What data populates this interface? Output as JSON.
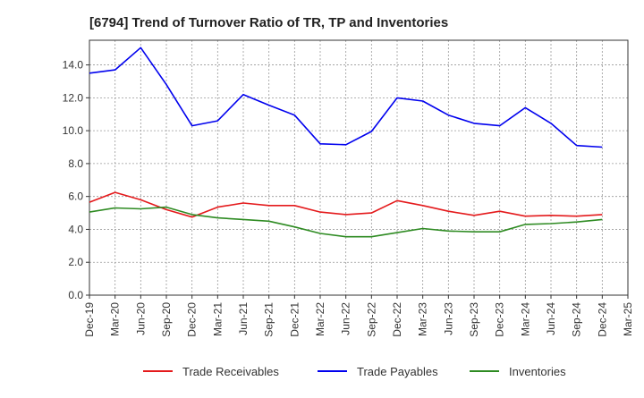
{
  "chart_data": {
    "type": "line",
    "title": "[6794]  Trend of Turnover Ratio of TR, TP and Inventories",
    "xlabel": "",
    "ylabel": "",
    "ylim": [
      0,
      15.5
    ],
    "yticks": [
      "0.0",
      "2.0",
      "4.0",
      "6.0",
      "8.0",
      "10.0",
      "12.0",
      "14.0"
    ],
    "x": [
      "Dec-19",
      "Mar-20",
      "Jun-20",
      "Sep-20",
      "Dec-20",
      "Mar-21",
      "Jun-21",
      "Sep-21",
      "Dec-21",
      "Mar-22",
      "Jun-22",
      "Sep-22",
      "Dec-22",
      "Mar-23",
      "Jun-23",
      "Sep-23",
      "Dec-23",
      "Mar-24",
      "Jun-24",
      "Sep-24",
      "Dec-24"
    ],
    "xticks": [
      "Dec-19",
      "Mar-20",
      "Jun-20",
      "Sep-20",
      "Dec-20",
      "Mar-21",
      "Jun-21",
      "Sep-21",
      "Dec-21",
      "Mar-22",
      "Jun-22",
      "Sep-22",
      "Dec-22",
      "Mar-23",
      "Jun-23",
      "Sep-23",
      "Dec-23",
      "Mar-24",
      "Jun-24",
      "Sep-24",
      "Dec-24",
      "Mar-25"
    ],
    "grid": true,
    "legend_position": "bottom",
    "series": [
      {
        "name": "Trade Receivables",
        "color": "#e41a1c",
        "values": [
          5.65,
          6.25,
          5.8,
          5.2,
          4.75,
          5.35,
          5.6,
          5.45,
          5.45,
          5.05,
          4.9,
          5.0,
          5.75,
          5.45,
          5.1,
          4.85,
          5.1,
          4.8,
          4.85,
          4.8,
          4.9
        ]
      },
      {
        "name": "Trade Payables",
        "color": "#0000ee",
        "values": [
          13.5,
          13.7,
          15.05,
          12.8,
          10.3,
          10.6,
          12.2,
          11.55,
          10.95,
          9.2,
          9.15,
          9.95,
          12.0,
          11.8,
          10.95,
          10.45,
          10.3,
          11.4,
          10.45,
          9.1,
          9.0
        ]
      },
      {
        "name": "Inventories",
        "color": "#2e8b22",
        "values": [
          5.05,
          5.3,
          5.25,
          5.35,
          4.9,
          4.7,
          4.6,
          4.5,
          4.15,
          3.75,
          3.55,
          3.55,
          3.8,
          4.05,
          3.9,
          3.85,
          3.85,
          4.3,
          4.35,
          4.45,
          4.6
        ]
      }
    ]
  }
}
